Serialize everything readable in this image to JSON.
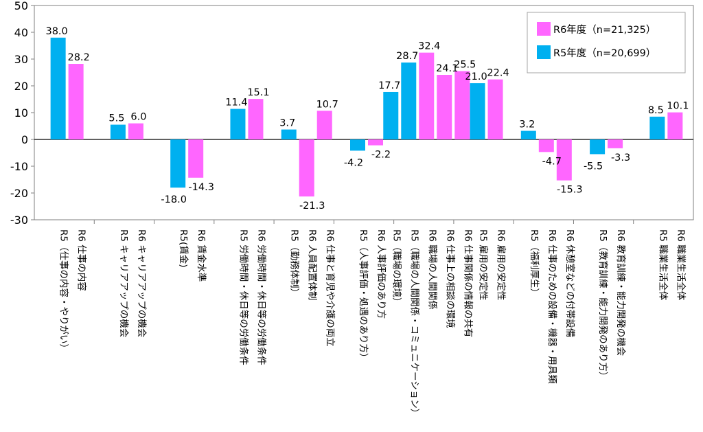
{
  "chart_data": {
    "type": "bar",
    "ylim": [
      -30,
      50
    ],
    "yticks": [
      -30,
      -20,
      -10,
      0,
      10,
      20,
      30,
      40,
      50
    ],
    "grid": false,
    "legend_position": "top-right",
    "colors": {
      "R5": "#00b0f0",
      "R6": "#ff66ff"
    },
    "legend": [
      {
        "label": "R6年度（n=21,325）",
        "series": "R6"
      },
      {
        "label": "R5年度（n=20,699）",
        "series": "R5"
      }
    ],
    "groups": [
      {
        "bars": [
          {
            "series": "R5",
            "value": 38.0,
            "label": "38.0",
            "category": "R5（仕事の内容・やりがい）"
          },
          {
            "series": "R6",
            "value": 28.2,
            "label": "28.2",
            "category": "R6 仕事の内容"
          }
        ]
      },
      {
        "bars": [
          {
            "series": "R5",
            "value": 5.5,
            "label": "5.5",
            "category": "R5 キャリアアップの機会"
          },
          {
            "series": "R6",
            "value": 6.0,
            "label": "6.0",
            "category": "R6 キャリアアップの機会"
          }
        ]
      },
      {
        "bars": [
          {
            "series": "R5",
            "value": -18.0,
            "label": "-18.0",
            "category": "R5(賃金)"
          },
          {
            "series": "R6",
            "value": -14.3,
            "label": "-14.3",
            "category": "R6 賃金水準"
          }
        ]
      },
      {
        "bars": [
          {
            "series": "R5",
            "value": 11.4,
            "label": "11.4",
            "category": "R5 労働時間・休日等の労働条件"
          },
          {
            "series": "R6",
            "value": 15.1,
            "label": "15.1",
            "category": "R6 労働時間・休日等の労働条件"
          }
        ]
      },
      {
        "bars": [
          {
            "series": "R5",
            "value": 3.7,
            "label": "3.7",
            "category": "R5（勤務体制）"
          },
          {
            "series": "R6",
            "value": -21.3,
            "label": "-21.3",
            "category": "R6 人員配置体制"
          },
          {
            "series": "R6",
            "value": 10.7,
            "label": "10.7",
            "category": "R6 仕事と育児や介護の両立"
          }
        ]
      },
      {
        "bars": [
          {
            "series": "R5",
            "value": -4.2,
            "label": "-4.2",
            "category": "R5（人事評価・処遇のあり方）"
          },
          {
            "series": "R6",
            "value": -2.2,
            "label": "-2.2",
            "category": "R6 人事評価のあり方"
          }
        ]
      },
      {
        "bars": [
          {
            "series": "R5",
            "value": 17.7,
            "label": "17.7",
            "category": "R5（職場の環境）"
          },
          {
            "series": "R5",
            "value": 28.7,
            "label": "28.7",
            "category": "R5（職場の人間関係・コミュニケーション）"
          },
          {
            "series": "R6",
            "value": 32.4,
            "label": "32.4",
            "category": "R6 職場の人間関係"
          },
          {
            "series": "R6",
            "value": 24.1,
            "label": "24.1",
            "category": "R6 仕事上の相談の環境"
          },
          {
            "series": "R6",
            "value": 25.5,
            "label": "25.5",
            "category": "R6 仕事関係の情報の共有"
          }
        ]
      },
      {
        "bars": [
          {
            "series": "R5",
            "value": 21.0,
            "label": "21.0",
            "category": "R5 雇用の安定性"
          },
          {
            "series": "R6",
            "value": 22.4,
            "label": "22.4",
            "category": "R6 雇用の安定性"
          }
        ]
      },
      {
        "bars": [
          {
            "series": "R5",
            "value": 3.2,
            "label": "3.2",
            "category": "R5（福利厚生）"
          },
          {
            "series": "R6",
            "value": -4.7,
            "label": "-4.7",
            "category": "R6 仕事のための設備・機器・用具類"
          },
          {
            "series": "R6",
            "value": -15.3,
            "label": "-15.3",
            "category": "R6 休憩室などの付帯設備"
          }
        ]
      },
      {
        "bars": [
          {
            "series": "R5",
            "value": -5.5,
            "label": "-5.5",
            "category": "R5（教育訓練・能力開発のあり方）"
          },
          {
            "series": "R6",
            "value": -3.3,
            "label": "-3.3",
            "category": "R6 教育訓練・能力開発の機会"
          }
        ]
      },
      {
        "bars": [
          {
            "series": "R5",
            "value": 8.5,
            "label": "8.5",
            "category": "R5 職業生活全体"
          },
          {
            "series": "R6",
            "value": 10.1,
            "label": "10.1",
            "category": "R6 職業生活全体"
          }
        ]
      }
    ]
  }
}
